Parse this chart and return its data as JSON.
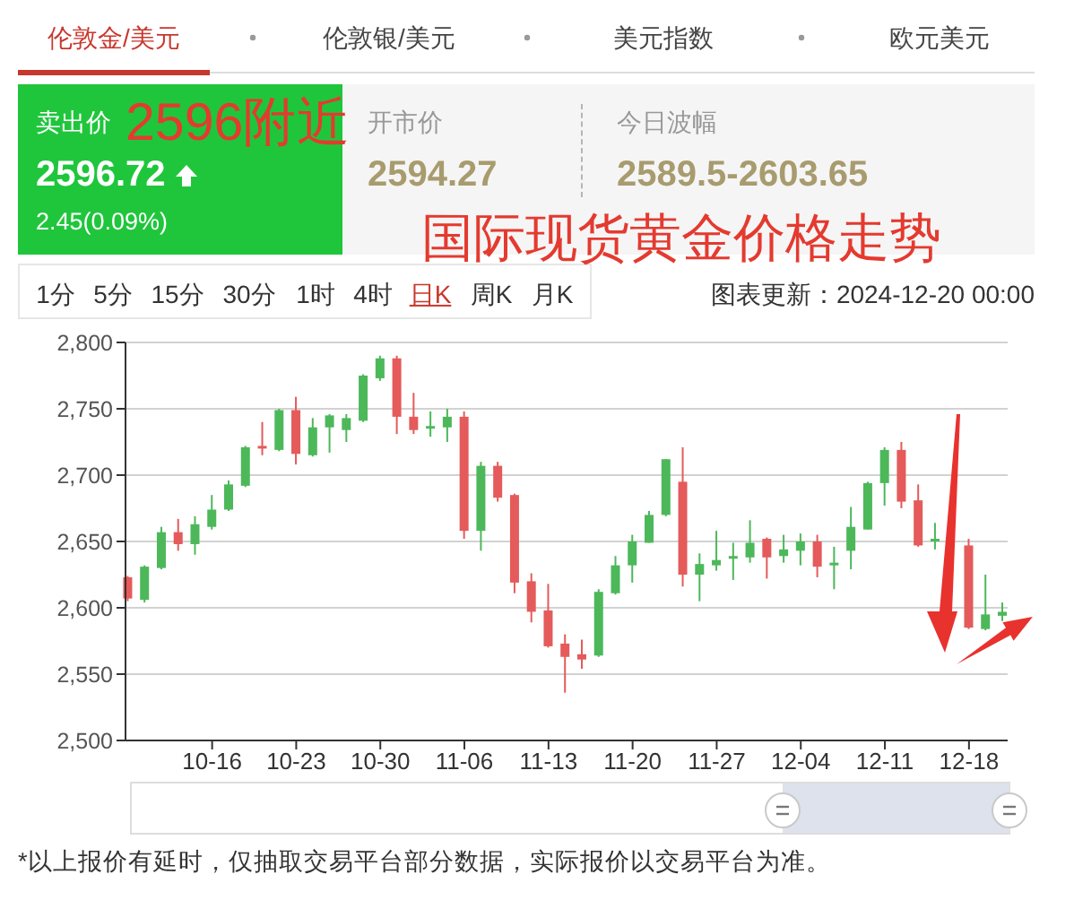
{
  "chart_data": {
    "type": "candlestick",
    "title": "国际现货黄金价格走势",
    "subtitle": "图表更新：2024-12-20 00:00",
    "annotations": [
      "伦敦金/美元",
      "伦敦银/美元",
      "美元指数",
      "欧元美元",
      "卖出价",
      "2596.72",
      "2.45(0.09%)",
      "2596附近",
      "开市价",
      "2594.27",
      "今日波幅",
      "2589.5-2603.65",
      "1分",
      "5分",
      "15分",
      "30分",
      "1时",
      "4时",
      "日K",
      "周K",
      "月K",
      "*以上报价有延时，仅抽取交易平台部分数据，实际报价以交易平台为准。"
    ],
    "categories": [
      null,
      null,
      null,
      null,
      null,
      "10-16",
      null,
      null,
      null,
      null,
      "10-23",
      null,
      null,
      null,
      null,
      "10-30",
      null,
      null,
      null,
      null,
      "11-06",
      null,
      null,
      null,
      null,
      "11-13",
      null,
      null,
      null,
      null,
      "11-20",
      null,
      null,
      null,
      null,
      "11-27",
      null,
      null,
      null,
      null,
      "12-04",
      null,
      null,
      null,
      null,
      "12-11",
      null,
      null,
      null,
      null,
      "12-18",
      null,
      null
    ],
    "ohlc": [
      [
        2623,
        2624,
        2605,
        2607
      ],
      [
        2606,
        2632,
        2604,
        2631
      ],
      [
        2630,
        2661,
        2629,
        2657
      ],
      [
        2657,
        2667,
        2643,
        2648
      ],
      [
        2648,
        2669,
        2640,
        2663
      ],
      [
        2661,
        2685,
        2659,
        2674
      ],
      [
        2674,
        2696,
        2673,
        2693
      ],
      [
        2692,
        2722,
        2691,
        2721
      ],
      [
        2722,
        2740,
        2715,
        2720
      ],
      [
        2719,
        2750,
        2718,
        2749
      ],
      [
        2749,
        2759,
        2708,
        2716
      ],
      [
        2715,
        2743,
        2714,
        2736
      ],
      [
        2736,
        2746,
        2717,
        2745
      ],
      [
        2734,
        2746,
        2725,
        2743
      ],
      [
        2741,
        2776,
        2740,
        2775
      ],
      [
        2773,
        2790,
        2771,
        2788
      ],
      [
        2788,
        2790,
        2731,
        2744
      ],
      [
        2744,
        2762,
        2731,
        2734
      ],
      [
        2735,
        2748,
        2729,
        2737
      ],
      [
        2736,
        2750,
        2725,
        2744
      ],
      [
        2744,
        2748,
        2652,
        2658
      ],
      [
        2658,
        2710,
        2643,
        2707
      ],
      [
        2707,
        2710,
        2680,
        2683
      ],
      [
        2685,
        2686,
        2611,
        2619
      ],
      [
        2620,
        2626,
        2589,
        2597
      ],
      [
        2598,
        2618,
        2570,
        2571
      ],
      [
        2573,
        2580,
        2536,
        2563
      ],
      [
        2565,
        2576,
        2554,
        2561
      ],
      [
        2564,
        2614,
        2563,
        2612
      ],
      [
        2611,
        2639,
        2610,
        2632
      ],
      [
        2632,
        2655,
        2619,
        2650
      ],
      [
        2649,
        2673,
        2649,
        2670
      ],
      [
        2670,
        2712,
        2669,
        2712
      ],
      [
        2695,
        2721,
        2616,
        2625
      ],
      [
        2625,
        2641,
        2605,
        2633
      ],
      [
        2632,
        2658,
        2628,
        2636
      ],
      [
        2637,
        2649,
        2621,
        2639
      ],
      [
        2638,
        2666,
        2634,
        2649
      ],
      [
        2652,
        2653,
        2622,
        2638
      ],
      [
        2639,
        2655,
        2634,
        2644
      ],
      [
        2643,
        2656,
        2632,
        2650
      ],
      [
        2650,
        2655,
        2623,
        2631
      ],
      [
        2632,
        2646,
        2614,
        2634
      ],
      [
        2643,
        2676,
        2629,
        2661
      ],
      [
        2659,
        2695,
        2659,
        2694
      ],
      [
        2694,
        2721,
        2677,
        2719
      ],
      [
        2719,
        2725,
        2675,
        2680
      ],
      [
        2681,
        2693,
        2646,
        2647
      ],
      [
        2650,
        2664,
        2644,
        2652
      ],
      null,
      [
        2647,
        2652,
        2584,
        2585
      ],
      [
        2584,
        2625,
        2583,
        2595
      ],
      [
        2594,
        2604,
        2590,
        2597
      ]
    ],
    "colors": [
      "#e55a5a",
      "#4cb85a",
      "#4cb85a",
      "#e55a5a",
      "#4cb85a",
      "#4cb85a",
      "#4cb85a",
      "#4cb85a",
      "#e55a5a",
      "#4cb85a",
      "#e55a5a",
      "#4cb85a",
      "#4cb85a",
      "#4cb85a",
      "#4cb85a",
      "#4cb85a",
      "#e55a5a",
      "#e55a5a",
      "#4cb85a",
      "#4cb85a",
      "#e55a5a",
      "#4cb85a",
      "#e55a5a",
      "#e55a5a",
      "#e55a5a",
      "#e55a5a",
      "#e55a5a",
      "#e55a5a",
      "#4cb85a",
      "#4cb85a",
      "#4cb85a",
      "#4cb85a",
      "#4cb85a",
      "#e55a5a",
      "#4cb85a",
      "#4cb85a",
      "#4cb85a",
      "#4cb85a",
      "#e55a5a",
      "#4cb85a",
      "#4cb85a",
      "#e55a5a",
      "#4cb85a",
      "#4cb85a",
      "#4cb85a",
      "#4cb85a",
      "#e55a5a",
      "#e55a5a",
      "#4cb85a",
      null,
      "#e55a5a",
      "#4cb85a",
      "#4cb85a"
    ],
    "ylim": [
      2500,
      2800
    ],
    "yticks": [
      {
        "value": 2500,
        "label": "2,500"
      },
      {
        "value": 2550,
        "label": "2,550"
      },
      {
        "value": 2600,
        "label": "2,600"
      },
      {
        "value": 2650,
        "label": "2,650"
      },
      {
        "value": 2700,
        "label": "2,700"
      },
      {
        "value": 2750,
        "label": "2,750"
      },
      {
        "value": 2800,
        "label": "2,800"
      }
    ],
    "grid": "y"
  }
}
